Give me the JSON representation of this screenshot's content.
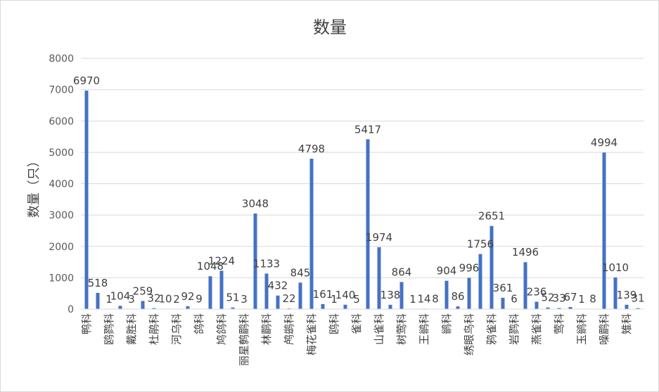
{
  "chart_data": {
    "type": "bar",
    "title": "数量",
    "xlabel": "",
    "ylabel": "数量（只）",
    "ylim": [
      0,
      8000
    ],
    "yticks": [
      0,
      1000,
      2000,
      3000,
      4000,
      5000,
      6000,
      7000,
      8000
    ],
    "grid": true,
    "legend": "none",
    "bar_color": "#4472c4",
    "categories": [
      "鸭科",
      "",
      "鸥鹨科",
      "",
      "戴胜科",
      "",
      "杜鹃科",
      "",
      "河乌科",
      "",
      "鸽科",
      "",
      "鸠鸽科",
      "",
      "丽星鹩鹛科",
      "",
      "林鹛科",
      "",
      "鸬鹚科",
      "",
      "梅花雀科",
      "",
      "鸥科",
      "",
      "雀科",
      "",
      "山雀科",
      "",
      "树莺科",
      "",
      "王鹟科",
      "",
      "鹟科",
      "",
      "绣眼鸟科",
      "",
      "鸦雀科",
      "",
      "岩鹨科",
      "",
      "燕雀科",
      "",
      "莺科",
      "",
      "玉鹟科",
      "",
      "噪鹛科",
      "",
      "雉科",
      ""
    ],
    "values": [
      6970,
      518,
      1,
      104,
      3,
      259,
      32,
      10,
      2,
      92,
      9,
      1048,
      1224,
      51,
      3,
      3048,
      1133,
      432,
      22,
      845,
      4798,
      161,
      1,
      140,
      5,
      5417,
      1974,
      138,
      864,
      1,
      14,
      8,
      904,
      86,
      996,
      1756,
      2651,
      361,
      6,
      1496,
      236,
      52,
      33,
      67,
      1,
      8,
      4994,
      1010,
      139,
      31
    ],
    "data_labels": [
      "6970",
      "518",
      "1",
      "104",
      "3",
      "259",
      "32",
      "10",
      "2",
      "92",
      "9",
      "1048",
      "1224",
      "51",
      "3",
      "3048",
      "1133",
      "432",
      "22",
      "845",
      "4798",
      "161",
      "1",
      "140",
      "5",
      "5417",
      "1974",
      "138",
      "864",
      "1",
      "14",
      "8",
      "904",
      "86",
      "996",
      "1756",
      "2651",
      "361",
      "6",
      "1496",
      "236",
      "52",
      "33",
      "67",
      "1",
      "8",
      "4994",
      "1010",
      "139",
      "31"
    ]
  }
}
